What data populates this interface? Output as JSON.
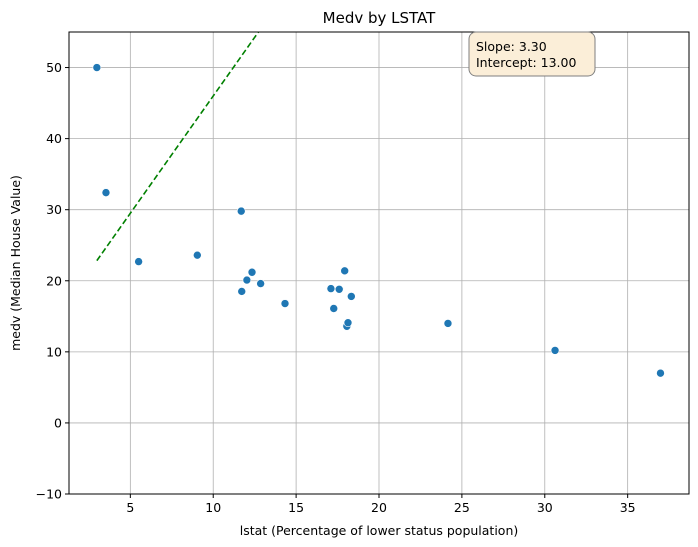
{
  "chart_data": {
    "type": "scatter",
    "title": "Medv by LSTAT",
    "xlabel": "lstat (Percentage of lower status population)",
    "ylabel": "medv (Median House Value)",
    "xlim": [
      1.3,
      38.7
    ],
    "ylim": [
      -10,
      55
    ],
    "xticks": [
      5,
      10,
      15,
      20,
      25,
      30,
      35
    ],
    "yticks": [
      -10,
      0,
      10,
      20,
      30,
      40,
      50
    ],
    "grid": true,
    "colors": {
      "points": "#1f77b4",
      "line": "#008000",
      "box_fill": "#fbeed8",
      "box_edge": "#7f7f7f",
      "grid": "#b0b0b0"
    },
    "points": [
      {
        "x": 2.98,
        "y": 50.0
      },
      {
        "x": 3.53,
        "y": 32.4
      },
      {
        "x": 5.5,
        "y": 22.7
      },
      {
        "x": 9.04,
        "y": 23.6
      },
      {
        "x": 11.69,
        "y": 29.8
      },
      {
        "x": 11.72,
        "y": 18.5
      },
      {
        "x": 12.03,
        "y": 20.1
      },
      {
        "x": 12.34,
        "y": 21.2
      },
      {
        "x": 12.86,
        "y": 19.6
      },
      {
        "x": 14.33,
        "y": 16.8
      },
      {
        "x": 17.1,
        "y": 18.9
      },
      {
        "x": 17.27,
        "y": 16.1
      },
      {
        "x": 17.6,
        "y": 18.8
      },
      {
        "x": 17.93,
        "y": 21.4
      },
      {
        "x": 18.06,
        "y": 13.6
      },
      {
        "x": 18.13,
        "y": 14.1
      },
      {
        "x": 18.33,
        "y": 17.8
      },
      {
        "x": 24.16,
        "y": 14.0
      },
      {
        "x": 30.62,
        "y": 10.2
      },
      {
        "x": 36.98,
        "y": 7.0
      }
    ],
    "regression": {
      "slope": 3.3,
      "intercept": 13.0,
      "x_range": [
        2.98,
        36.98
      ]
    },
    "annotation": {
      "slope_text": "Slope: 3.30",
      "intercept_text": "Intercept: 13.00",
      "position": "top-right"
    }
  }
}
